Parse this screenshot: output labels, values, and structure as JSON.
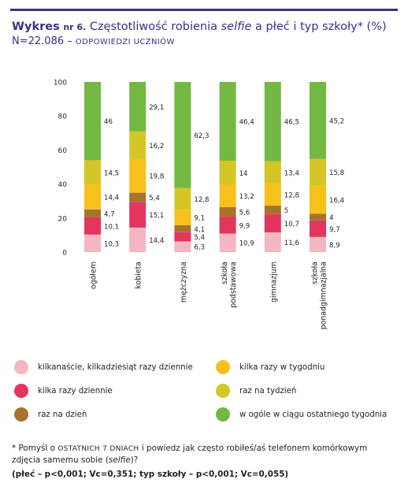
{
  "header": {
    "title_prefix": "Wykres",
    "title_nr": "nr 6.",
    "title_text": "Częstotliwość robienia",
    "title_italic": "selfie",
    "title_suffix": "a płeć i typ szkoły* (%)",
    "subtitle_n": "N=22.086 –",
    "subtitle_caps": "ODPOWIEDZI UCZNIÓW"
  },
  "colors": {
    "kilkanascie": "#f4b6c2",
    "kilka_dziennie": "#e3355e",
    "raz_dzien": "#a8712d",
    "kilka_tydzien": "#f8c01a",
    "raz_tydzien": "#d4c625",
    "w_ogole": "#72b843"
  },
  "chart_data": {
    "type": "bar",
    "stacked": true,
    "categories": [
      "ogółem",
      "kobieta",
      "mężczyzna",
      "szkoła podstawowa",
      "gimnazjum",
      "szkoła ponadgimnazjalna"
    ],
    "ylim": [
      0,
      100
    ],
    "yticks": [
      0,
      20,
      40,
      60,
      80,
      100
    ],
    "grid": false,
    "series": [
      {
        "name": "kilkanaście, kilkadziesiąt razy dziennie",
        "color_key": "kilkanascie",
        "values": [
          10.3,
          14.4,
          6.3,
          10.9,
          11.6,
          8.9
        ],
        "labels": [
          "10,3",
          "14,4",
          "6,3",
          "10,9",
          "11,6",
          "8,9"
        ]
      },
      {
        "name": "kilka razy dziennie",
        "color_key": "kilka_dziennie",
        "values": [
          10.1,
          15.1,
          5.4,
          9.9,
          10.7,
          9.7
        ],
        "labels": [
          "10,1",
          "15,1",
          "5,4",
          "9,9",
          "10,7",
          "9,7"
        ]
      },
      {
        "name": "raz na dzień",
        "color_key": "raz_dzien",
        "values": [
          4.7,
          5.4,
          4.1,
          5.6,
          5.0,
          4.0
        ],
        "labels": [
          "4,7",
          "5,4",
          "4,1",
          "5,6",
          "5",
          "4"
        ]
      },
      {
        "name": "kilka razy w tygodniu",
        "color_key": "kilka_tydzien",
        "values": [
          14.4,
          19.8,
          9.1,
          13.2,
          12.8,
          16.4
        ],
        "labels": [
          "14,4",
          "19,8",
          "9,1",
          "13,2",
          "12,8",
          "16,4"
        ]
      },
      {
        "name": "raz na tydzień",
        "color_key": "raz_tydzien",
        "values": [
          14.5,
          16.2,
          12.8,
          14.0,
          13.4,
          15.8
        ],
        "labels": [
          "14,5",
          "16,2",
          "12,8",
          "14",
          "13,4",
          "15,8"
        ]
      },
      {
        "name": "w ogóle w ciągu ostatniego tygodnia",
        "color_key": "w_ogole",
        "values": [
          46.0,
          29.1,
          62.3,
          46.4,
          46.5,
          45.2
        ],
        "labels": [
          "46",
          "29,1",
          "62,3",
          "46,4",
          "46,5",
          "45,2"
        ]
      }
    ],
    "category_label_lines": [
      [
        "ogółem"
      ],
      [
        "kobieta"
      ],
      [
        "mężczyzna"
      ],
      [
        "szkoła",
        "podstawowa"
      ],
      [
        "gimnazjum"
      ],
      [
        "szkoła",
        "ponadgimnazjalna"
      ]
    ],
    "legend_position": "bottom"
  },
  "legend": [
    {
      "label": "kilkanaście, kilkadziesiąt razy dziennie",
      "color_key": "kilkanascie"
    },
    {
      "label": "kilka razy w tygodniu",
      "color_key": "kilka_tydzien"
    },
    {
      "label": "kilka razy dziennie",
      "color_key": "kilka_dziennie"
    },
    {
      "label": "raz na tydzień",
      "color_key": "raz_tydzien"
    },
    {
      "label": "raz na dzień",
      "color_key": "raz_dzien"
    },
    {
      "label": "w ogóle w ciągu ostatniego tygodnia",
      "color_key": "w_ogole"
    }
  ],
  "footnote": {
    "part1": "* Pomyśl o",
    "caps": "OSTATNICH 7 DNIACH",
    "part2": "i powiedz jak często robiłeś/aś telefonem komórkowym zdjęcia samemu sobie (",
    "italic": "selfie",
    "part3": ")?",
    "stats": "(płeć – p<0,001; Vc=0,351; typ szkoły – p<0,001; Vc=0,055)"
  }
}
